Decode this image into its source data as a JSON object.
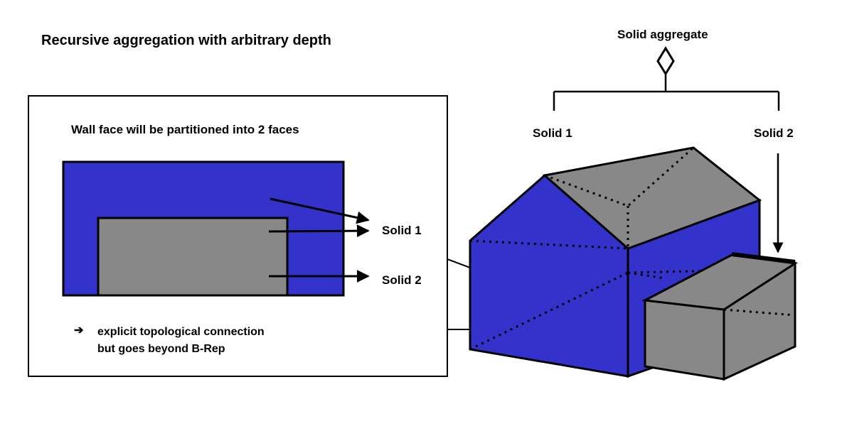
{
  "title": "Recursive aggregation with arbitrary depth",
  "aggregate": {
    "label": "Solid aggregate",
    "solid1_label": "Solid 1",
    "solid2_label": "Solid 2"
  },
  "detail": {
    "heading": "Wall face will be partitioned into 2 faces",
    "arrow_labels": [
      "Solid 1",
      "Solid 2"
    ],
    "note_bullet": "➔",
    "note_lines": [
      "explicit topological connection",
      "but goes beyond B-Rep"
    ]
  },
  "colors": {
    "wall": "#3333cc",
    "solid2": "#888888",
    "roof": "#888888",
    "line": "#000000",
    "background": "#ffffff"
  }
}
